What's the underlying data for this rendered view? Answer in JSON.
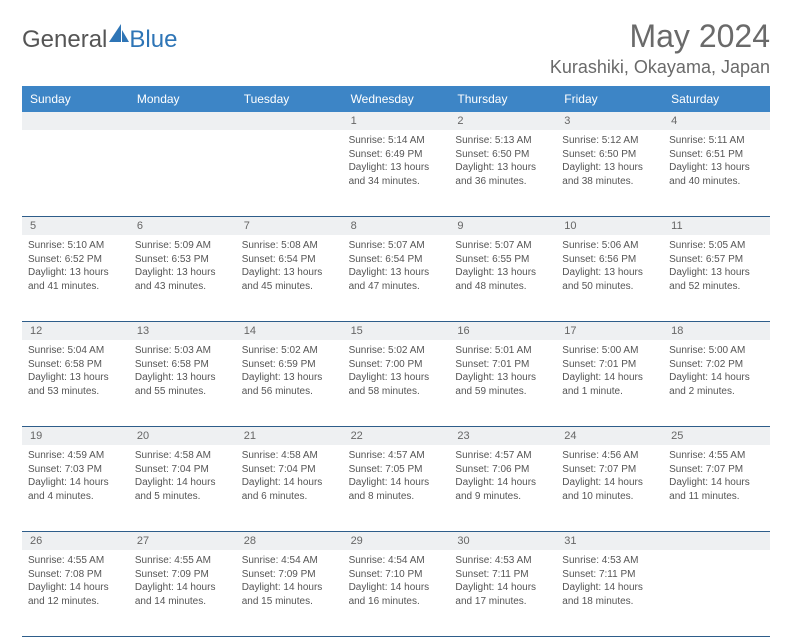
{
  "brand": {
    "part1": "General",
    "part2": "Blue"
  },
  "title": "May 2024",
  "location": "Kurashiki, Okayama, Japan",
  "colors": {
    "header_bg": "#3d85c6",
    "header_text": "#ffffff",
    "daynum_bg": "#eef0f2",
    "border": "#2e5d8a",
    "text": "#555555",
    "title_text": "#6a6a6a"
  },
  "daynames": [
    "Sunday",
    "Monday",
    "Tuesday",
    "Wednesday",
    "Thursday",
    "Friday",
    "Saturday"
  ],
  "weeks": [
    {
      "nums": [
        "",
        "",
        "",
        "1",
        "2",
        "3",
        "4"
      ],
      "cells": [
        null,
        null,
        null,
        {
          "sunrise": "Sunrise: 5:14 AM",
          "sunset": "Sunset: 6:49 PM",
          "day1": "Daylight: 13 hours",
          "day2": "and 34 minutes."
        },
        {
          "sunrise": "Sunrise: 5:13 AM",
          "sunset": "Sunset: 6:50 PM",
          "day1": "Daylight: 13 hours",
          "day2": "and 36 minutes."
        },
        {
          "sunrise": "Sunrise: 5:12 AM",
          "sunset": "Sunset: 6:50 PM",
          "day1": "Daylight: 13 hours",
          "day2": "and 38 minutes."
        },
        {
          "sunrise": "Sunrise: 5:11 AM",
          "sunset": "Sunset: 6:51 PM",
          "day1": "Daylight: 13 hours",
          "day2": "and 40 minutes."
        }
      ]
    },
    {
      "nums": [
        "5",
        "6",
        "7",
        "8",
        "9",
        "10",
        "11"
      ],
      "cells": [
        {
          "sunrise": "Sunrise: 5:10 AM",
          "sunset": "Sunset: 6:52 PM",
          "day1": "Daylight: 13 hours",
          "day2": "and 41 minutes."
        },
        {
          "sunrise": "Sunrise: 5:09 AM",
          "sunset": "Sunset: 6:53 PM",
          "day1": "Daylight: 13 hours",
          "day2": "and 43 minutes."
        },
        {
          "sunrise": "Sunrise: 5:08 AM",
          "sunset": "Sunset: 6:54 PM",
          "day1": "Daylight: 13 hours",
          "day2": "and 45 minutes."
        },
        {
          "sunrise": "Sunrise: 5:07 AM",
          "sunset": "Sunset: 6:54 PM",
          "day1": "Daylight: 13 hours",
          "day2": "and 47 minutes."
        },
        {
          "sunrise": "Sunrise: 5:07 AM",
          "sunset": "Sunset: 6:55 PM",
          "day1": "Daylight: 13 hours",
          "day2": "and 48 minutes."
        },
        {
          "sunrise": "Sunrise: 5:06 AM",
          "sunset": "Sunset: 6:56 PM",
          "day1": "Daylight: 13 hours",
          "day2": "and 50 minutes."
        },
        {
          "sunrise": "Sunrise: 5:05 AM",
          "sunset": "Sunset: 6:57 PM",
          "day1": "Daylight: 13 hours",
          "day2": "and 52 minutes."
        }
      ]
    },
    {
      "nums": [
        "12",
        "13",
        "14",
        "15",
        "16",
        "17",
        "18"
      ],
      "cells": [
        {
          "sunrise": "Sunrise: 5:04 AM",
          "sunset": "Sunset: 6:58 PM",
          "day1": "Daylight: 13 hours",
          "day2": "and 53 minutes."
        },
        {
          "sunrise": "Sunrise: 5:03 AM",
          "sunset": "Sunset: 6:58 PM",
          "day1": "Daylight: 13 hours",
          "day2": "and 55 minutes."
        },
        {
          "sunrise": "Sunrise: 5:02 AM",
          "sunset": "Sunset: 6:59 PM",
          "day1": "Daylight: 13 hours",
          "day2": "and 56 minutes."
        },
        {
          "sunrise": "Sunrise: 5:02 AM",
          "sunset": "Sunset: 7:00 PM",
          "day1": "Daylight: 13 hours",
          "day2": "and 58 minutes."
        },
        {
          "sunrise": "Sunrise: 5:01 AM",
          "sunset": "Sunset: 7:01 PM",
          "day1": "Daylight: 13 hours",
          "day2": "and 59 minutes."
        },
        {
          "sunrise": "Sunrise: 5:00 AM",
          "sunset": "Sunset: 7:01 PM",
          "day1": "Daylight: 14 hours",
          "day2": "and 1 minute."
        },
        {
          "sunrise": "Sunrise: 5:00 AM",
          "sunset": "Sunset: 7:02 PM",
          "day1": "Daylight: 14 hours",
          "day2": "and 2 minutes."
        }
      ]
    },
    {
      "nums": [
        "19",
        "20",
        "21",
        "22",
        "23",
        "24",
        "25"
      ],
      "cells": [
        {
          "sunrise": "Sunrise: 4:59 AM",
          "sunset": "Sunset: 7:03 PM",
          "day1": "Daylight: 14 hours",
          "day2": "and 4 minutes."
        },
        {
          "sunrise": "Sunrise: 4:58 AM",
          "sunset": "Sunset: 7:04 PM",
          "day1": "Daylight: 14 hours",
          "day2": "and 5 minutes."
        },
        {
          "sunrise": "Sunrise: 4:58 AM",
          "sunset": "Sunset: 7:04 PM",
          "day1": "Daylight: 14 hours",
          "day2": "and 6 minutes."
        },
        {
          "sunrise": "Sunrise: 4:57 AM",
          "sunset": "Sunset: 7:05 PM",
          "day1": "Daylight: 14 hours",
          "day2": "and 8 minutes."
        },
        {
          "sunrise": "Sunrise: 4:57 AM",
          "sunset": "Sunset: 7:06 PM",
          "day1": "Daylight: 14 hours",
          "day2": "and 9 minutes."
        },
        {
          "sunrise": "Sunrise: 4:56 AM",
          "sunset": "Sunset: 7:07 PM",
          "day1": "Daylight: 14 hours",
          "day2": "and 10 minutes."
        },
        {
          "sunrise": "Sunrise: 4:55 AM",
          "sunset": "Sunset: 7:07 PM",
          "day1": "Daylight: 14 hours",
          "day2": "and 11 minutes."
        }
      ]
    },
    {
      "nums": [
        "26",
        "27",
        "28",
        "29",
        "30",
        "31",
        ""
      ],
      "cells": [
        {
          "sunrise": "Sunrise: 4:55 AM",
          "sunset": "Sunset: 7:08 PM",
          "day1": "Daylight: 14 hours",
          "day2": "and 12 minutes."
        },
        {
          "sunrise": "Sunrise: 4:55 AM",
          "sunset": "Sunset: 7:09 PM",
          "day1": "Daylight: 14 hours",
          "day2": "and 14 minutes."
        },
        {
          "sunrise": "Sunrise: 4:54 AM",
          "sunset": "Sunset: 7:09 PM",
          "day1": "Daylight: 14 hours",
          "day2": "and 15 minutes."
        },
        {
          "sunrise": "Sunrise: 4:54 AM",
          "sunset": "Sunset: 7:10 PM",
          "day1": "Daylight: 14 hours",
          "day2": "and 16 minutes."
        },
        {
          "sunrise": "Sunrise: 4:53 AM",
          "sunset": "Sunset: 7:11 PM",
          "day1": "Daylight: 14 hours",
          "day2": "and 17 minutes."
        },
        {
          "sunrise": "Sunrise: 4:53 AM",
          "sunset": "Sunset: 7:11 PM",
          "day1": "Daylight: 14 hours",
          "day2": "and 18 minutes."
        },
        null
      ]
    }
  ]
}
